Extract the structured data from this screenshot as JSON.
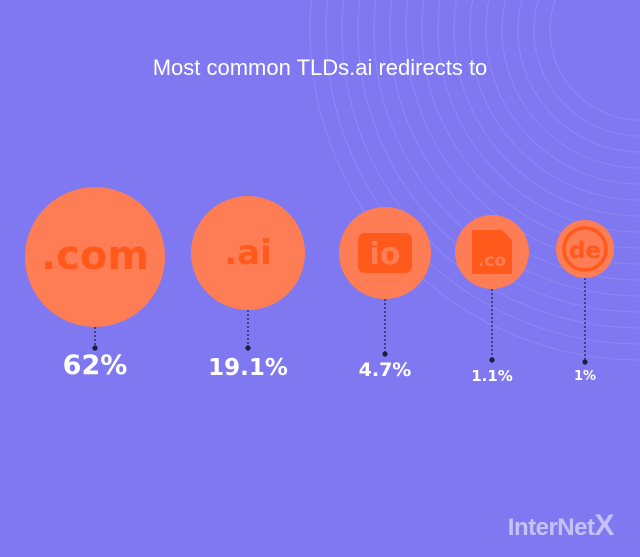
{
  "title": "Most common TLDs.ai redirects to",
  "brand": {
    "name": "InterNet",
    "x": "X"
  },
  "colors": {
    "background": "#7f78f1",
    "circle": "#ff7d55",
    "mark": "#ff5a1c",
    "text": "#ffffff"
  },
  "chart_data": {
    "type": "bubble",
    "title": "Most common TLDs.ai redirects to",
    "categories": [
      ".com",
      ".ai",
      ".io",
      ".co",
      ".de"
    ],
    "values": [
      62,
      19.1,
      4.7,
      1.1,
      1
    ],
    "value_labels": [
      "62%",
      "19.1%",
      "4.7%",
      "1.1%",
      "1%"
    ],
    "unit": "%"
  }
}
